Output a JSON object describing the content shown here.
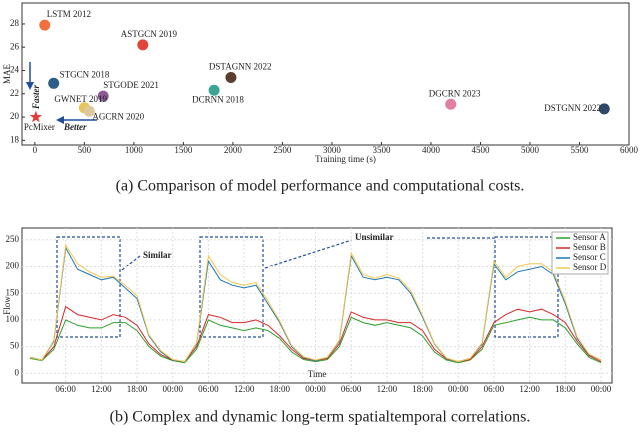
{
  "chart_data": [
    {
      "type": "scatter",
      "xlabel": "Training time (s)",
      "ylabel": "MAE",
      "xlim": [
        -130,
        6000
      ],
      "xticks": [
        0,
        500,
        1000,
        1500,
        2000,
        2500,
        3000,
        3500,
        4000,
        4500,
        5000,
        5500,
        6000
      ],
      "ylim": [
        17.6,
        29.8
      ],
      "yticks": [
        18,
        20,
        22,
        24,
        26,
        28
      ],
      "series": [
        {
          "name": "LSTM 2012",
          "color": "#f2703e",
          "x": [
            100
          ],
          "values": [
            27.9
          ]
        },
        {
          "name": "ASTGCN 2019",
          "color": "#e0473a",
          "x": [
            1090
          ],
          "values": [
            26.2
          ]
        },
        {
          "name": "STGCN 2018",
          "color": "#2d5e88",
          "x": [
            190
          ],
          "values": [
            22.9
          ]
        },
        {
          "name": "STGODE 2021",
          "color": "#8c5a98",
          "x": [
            690
          ],
          "values": [
            21.8
          ]
        },
        {
          "name": "GWNET 2019",
          "color": "#e9c35b",
          "x": [
            500
          ],
          "values": [
            20.8
          ]
        },
        {
          "name": "AGCRN 2020",
          "color": "#dfc99c",
          "x": [
            550
          ],
          "values": [
            20.5
          ]
        },
        {
          "name": "PcMixer",
          "color": "#e53935",
          "marker": "star",
          "x": [
            10
          ],
          "values": [
            20.0
          ]
        },
        {
          "name": "DSTAGNN 2022",
          "color": "#5a3f2e",
          "x": [
            1980
          ],
          "values": [
            23.4
          ]
        },
        {
          "name": "DCRNN 2018",
          "color": "#3aa597",
          "x": [
            1810
          ],
          "values": [
            22.3
          ]
        },
        {
          "name": "DGCRN 2023",
          "color": "#e27ea2",
          "x": [
            4200
          ],
          "values": [
            21.1
          ]
        },
        {
          "name": "DSTGNN 2022",
          "color": "#2e4868",
          "x": [
            5750
          ],
          "values": [
            20.7
          ]
        }
      ],
      "annotations": [
        "Faster",
        "Better"
      ],
      "caption": "(a)  Comparison of model performance and computational costs."
    },
    {
      "type": "line",
      "xlabel": "Time",
      "ylabel": "Flow",
      "categories": [
        null,
        null,
        null,
        "06:00",
        null,
        null,
        "12:00",
        null,
        null,
        "18:00",
        null,
        null,
        "00:00",
        null,
        null,
        "06:00",
        null,
        null,
        "12:00",
        null,
        null,
        "18:00",
        null,
        null,
        "00:00",
        null,
        null,
        "06:00",
        null,
        null,
        "12:00",
        null,
        null,
        "18:00",
        null,
        null,
        "00:00",
        null,
        null,
        "06:00",
        null,
        null,
        "12:00",
        null,
        null,
        "18:00",
        null,
        null,
        "00:00"
      ],
      "ylim": [
        -18,
        272
      ],
      "yticks": [
        0,
        50,
        100,
        150,
        200,
        250
      ],
      "grid": true,
      "legend": "upper right",
      "series": [
        {
          "name": "Sensor A",
          "color": "#2ca02c",
          "values": [
            28,
            24,
            45,
            100,
            90,
            85,
            85,
            95,
            95,
            80,
            50,
            32,
            24,
            20,
            45,
            100,
            90,
            85,
            80,
            85,
            80,
            65,
            40,
            26,
            22,
            26,
            50,
            105,
            95,
            90,
            95,
            90,
            85,
            70,
            40,
            25,
            20,
            25,
            45,
            90,
            95,
            100,
            105,
            100,
            100,
            85,
            55,
            30,
            20
          ]
        },
        {
          "name": "Sensor B",
          "color": "#d62728",
          "values": [
            30,
            25,
            50,
            125,
            110,
            105,
            100,
            110,
            105,
            90,
            55,
            35,
            25,
            22,
            50,
            110,
            105,
            95,
            95,
            100,
            90,
            70,
            45,
            28,
            24,
            28,
            55,
            115,
            105,
            100,
            100,
            95,
            95,
            80,
            45,
            27,
            22,
            26,
            50,
            95,
            110,
            120,
            115,
            120,
            110,
            95,
            60,
            33,
            22
          ]
        },
        {
          "name": "Sensor C",
          "color": "#1f77b4",
          "values": [
            30,
            25,
            60,
            235,
            195,
            185,
            175,
            180,
            160,
            140,
            70,
            40,
            25,
            22,
            55,
            210,
            175,
            165,
            160,
            165,
            130,
            95,
            50,
            30,
            24,
            30,
            60,
            220,
            180,
            175,
            180,
            175,
            150,
            105,
            55,
            28,
            22,
            28,
            55,
            205,
            175,
            190,
            195,
            200,
            185,
            130,
            65,
            35,
            25
          ]
        },
        {
          "name": "Sensor D",
          "color": "#f5c84c",
          "values": [
            30,
            25,
            62,
            240,
            205,
            190,
            180,
            182,
            165,
            145,
            72,
            42,
            26,
            22,
            57,
            220,
            185,
            170,
            165,
            170,
            135,
            98,
            52,
            31,
            25,
            30,
            62,
            225,
            185,
            178,
            185,
            178,
            155,
            108,
            56,
            29,
            22,
            28,
            57,
            210,
            180,
            200,
            205,
            205,
            190,
            135,
            68,
            36,
            25
          ]
        }
      ],
      "annotations": [
        "Similar",
        "Unsimilar"
      ],
      "caption": "(b)  Complex and dynamic long-term spatialtemporal correlations."
    }
  ]
}
